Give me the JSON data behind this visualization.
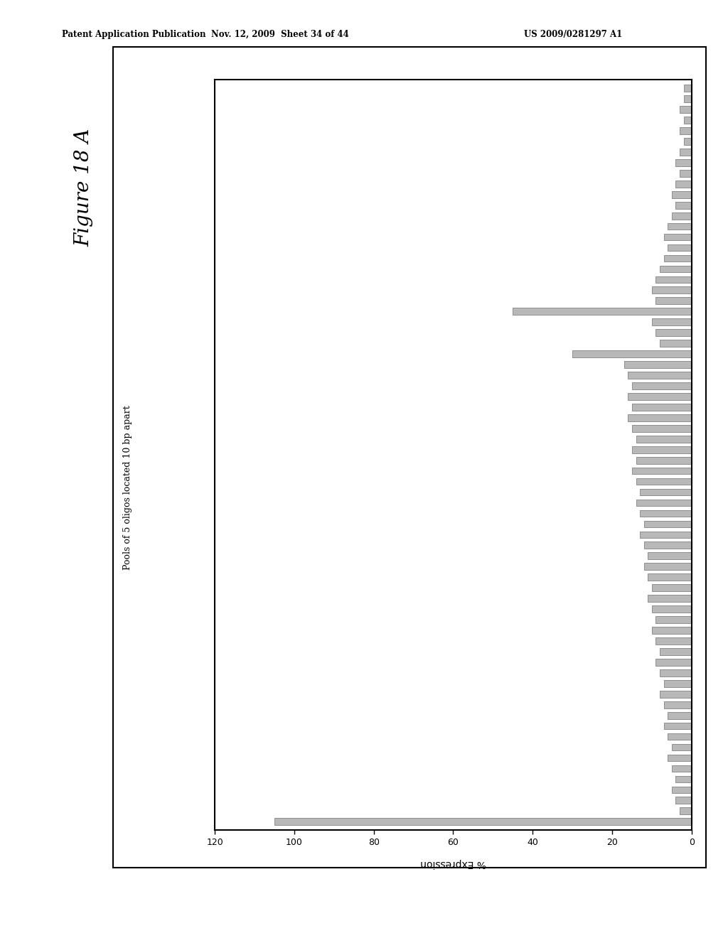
{
  "title": "Figure 18 A",
  "ylabel": "Pools of 5 oligos located 10 bp apart",
  "xlabel": "% Expression",
  "header_line1": "Patent Application Publication",
  "header_line2": "Nov. 12, 2009  Sheet 34 of 44",
  "header_line3": "US 2009/0281297 A1",
  "xlim_max": 120,
  "xlim_min": 0,
  "xticks": [
    120,
    100,
    80,
    60,
    40,
    20,
    0
  ],
  "bar_color": "#b8b8b8",
  "bar_edgecolor": "#555555",
  "bar_values": [
    105,
    3,
    4,
    5,
    4,
    5,
    6,
    5,
    6,
    7,
    6,
    7,
    8,
    7,
    8,
    9,
    8,
    9,
    10,
    9,
    10,
    11,
    10,
    11,
    12,
    11,
    12,
    13,
    12,
    13,
    14,
    13,
    14,
    15,
    14,
    15,
    14,
    15,
    16,
    15,
    16,
    15,
    16,
    17,
    30,
    8,
    9,
    10,
    45,
    9,
    10,
    9,
    8,
    7,
    6,
    7,
    6,
    5,
    4,
    5,
    4,
    3,
    4,
    3,
    2,
    3,
    2,
    3,
    2,
    2
  ],
  "background_color": "#ffffff",
  "outer_box": true
}
